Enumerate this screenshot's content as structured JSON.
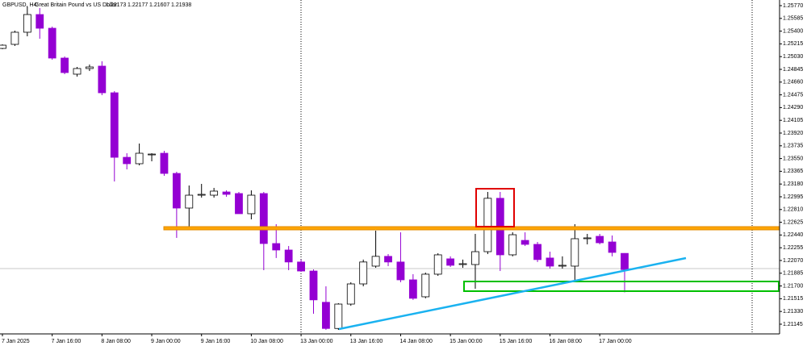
{
  "chart_data": {
    "type": "candlestick",
    "title": "GBPUSD, H4:",
    "subtitle": "Great Britain Pound vs US Dollar",
    "quote": [
      1.22173,
      1.22177,
      1.21607,
      1.21938
    ],
    "bull_color": "#ffffff",
    "bear_color": "#9400d3",
    "ylim": [
      1.21004,
      1.25852
    ],
    "yticks": [
      {
        "value": 1.2577,
        "label": "1.25770"
      },
      {
        "value": 1.25585,
        "label": "1.25585"
      },
      {
        "value": 1.254,
        "label": "1.25400"
      },
      {
        "value": 1.25215,
        "label": "1.25215"
      },
      {
        "value": 1.2503,
        "label": "1.25030"
      },
      {
        "value": 1.24845,
        "label": "1.24845"
      },
      {
        "value": 1.2466,
        "label": "1.24660"
      },
      {
        "value": 1.24475,
        "label": "1.24475"
      },
      {
        "value": 1.2429,
        "label": "1.24290"
      },
      {
        "value": 1.24105,
        "label": "1.24105"
      },
      {
        "value": 1.2392,
        "label": "1.23920"
      },
      {
        "value": 1.23735,
        "label": "1.23735"
      },
      {
        "value": 1.2355,
        "label": "1.23550"
      },
      {
        "value": 1.23365,
        "label": "1.23365"
      },
      {
        "value": 1.2318,
        "label": "1.23180"
      },
      {
        "value": 1.22995,
        "label": "1.22995"
      },
      {
        "value": 1.2281,
        "label": "1.22810"
      },
      {
        "value": 1.22625,
        "label": "1.22625"
      },
      {
        "value": 1.2244,
        "label": "1.22440"
      },
      {
        "value": 1.22255,
        "label": "1.22255"
      },
      {
        "value": 1.2207,
        "label": "1.22070"
      },
      {
        "value": 1.21885,
        "label": "1.21885"
      },
      {
        "value": 1.217,
        "label": "1.21700"
      },
      {
        "value": 1.21515,
        "label": "1.21515"
      },
      {
        "value": 1.2133,
        "label": "1.21330"
      },
      {
        "value": 1.21145,
        "label": "1.21145"
      }
    ],
    "categories": [
      "7 Jan 2025",
      null,
      null,
      null,
      "7 Jan 16:00",
      null,
      null,
      null,
      "8 Jan 08:00",
      null,
      null,
      null,
      "9 Jan 00:00",
      null,
      null,
      null,
      "9 Jan 16:00",
      null,
      null,
      null,
      "10 Jan 08:00",
      null,
      null,
      null,
      "13 Jan 00:00",
      null,
      null,
      null,
      "13 Jan 16:00",
      null,
      null,
      null,
      "14 Jan 08:00",
      null,
      null,
      null,
      "15 Jan 00:00",
      null,
      null,
      null,
      "15 Jan 16:00",
      null,
      null,
      null,
      "16 Jan 08:00",
      null,
      null,
      null,
      "17 Jan 00:00",
      null,
      null
    ],
    "open": [
      1.25149,
      1.25208,
      1.25384,
      1.25641,
      1.25442,
      1.25009,
      1.24775,
      1.24857,
      1.24892,
      1.24505,
      1.23568,
      1.23475,
      1.23604,
      1.23627,
      1.23334,
      1.22831,
      1.23018,
      1.23018,
      1.23065,
      1.23042,
      1.22749,
      1.23042,
      1.22316,
      1.22222,
      1.22048,
      1.21917,
      1.21463,
      1.21083,
      1.21437,
      1.2173,
      1.21988,
      1.2213,
      1.22048,
      1.21789,
      1.21543,
      1.21871,
      1.22094,
      1.22011,
      1.22011,
      1.22198,
      1.22973,
      1.22152,
      1.22362,
      1.22304,
      1.22106,
      1.21988,
      1.21988,
      1.22386,
      1.22421,
      1.22339,
      1.22173
    ],
    "high": [
      1.25208,
      1.25407,
      1.25758,
      1.25735,
      1.25466,
      1.25032,
      1.2488,
      1.24915,
      1.24962,
      1.24529,
      1.23627,
      1.23768,
      1.23627,
      1.23662,
      1.23358,
      1.23159,
      1.23182,
      1.23124,
      1.23088,
      1.23065,
      1.23088,
      1.23065,
      1.22597,
      1.2228,
      1.22083,
      1.21941,
      1.21695,
      1.2145,
      1.21754,
      1.22083,
      1.22503,
      1.22163,
      1.22479,
      1.21871,
      1.21894,
      1.22175,
      1.2213,
      1.22083,
      1.22456,
      1.23065,
      1.23065,
      1.22479,
      1.22479,
      1.22339,
      1.22198,
      1.2213,
      1.22597,
      1.22456,
      1.22456,
      1.22433,
      1.22177
    ],
    "low": [
      1.25138,
      1.25185,
      1.25325,
      1.2529,
      1.24985,
      1.24775,
      1.2474,
      1.24821,
      1.2447,
      1.23217,
      1.23393,
      1.23451,
      1.2351,
      1.23299,
      1.22398,
      1.22515,
      1.22983,
      1.22983,
      1.22995,
      1.22749,
      1.22667,
      1.21929,
      1.22106,
      1.21929,
      1.21906,
      1.21297,
      1.21063,
      1.21063,
      1.21412,
      1.21695,
      1.21964,
      1.21988,
      1.21754,
      1.21498,
      1.21521,
      1.21847,
      1.21976,
      1.21964,
      1.2166,
      1.22163,
      1.21917,
      1.2213,
      1.2228,
      1.22048,
      1.21952,
      1.21952,
      1.21777,
      1.22304,
      1.22304,
      1.2213,
      1.21607
    ],
    "close": [
      1.25196,
      1.25384,
      1.25641,
      1.25442,
      1.25009,
      1.24798,
      1.24857,
      1.2488,
      1.24505,
      1.23568,
      1.23475,
      1.23627,
      1.23615,
      1.23334,
      1.22831,
      1.23018,
      1.2303,
      1.23077,
      1.2303,
      1.22749,
      1.23018,
      1.22316,
      1.22222,
      1.22048,
      1.21917,
      1.21498,
      1.21083,
      1.21437,
      1.2173,
      1.22048,
      1.2213,
      1.22048,
      1.21789,
      1.21521,
      1.21871,
      1.22152,
      1.22,
      1.22023,
      1.22198,
      1.22973,
      1.22152,
      1.22444,
      1.22304,
      1.22083,
      1.21988,
      1.22,
      1.22386,
      1.22398,
      1.22327,
      1.22187,
      1.21938
    ]
  }
}
